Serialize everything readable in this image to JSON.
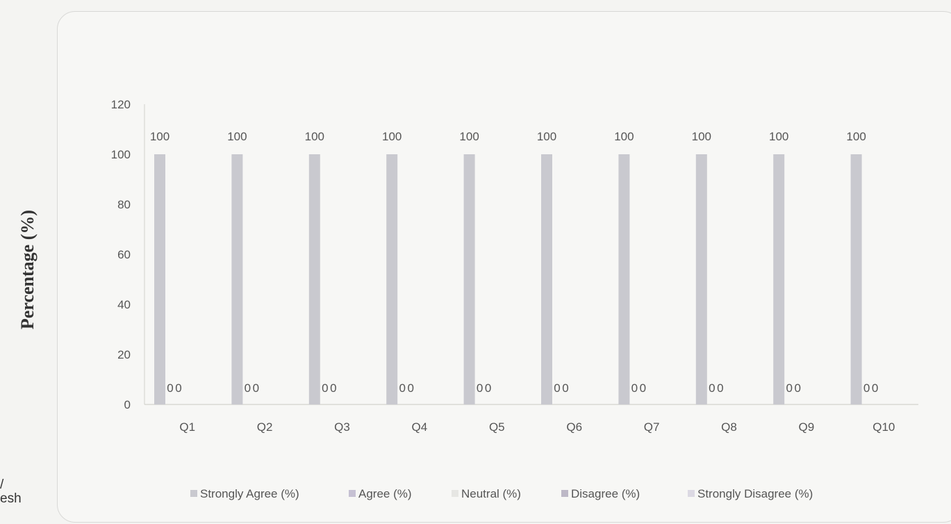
{
  "page": {
    "side_text_line1": "/",
    "side_text_line2": "esh"
  },
  "chart_data": {
    "type": "bar",
    "title": "",
    "xlabel": "",
    "ylabel": "Percentage (%)",
    "ylim": [
      0,
      120
    ],
    "yticks": [
      0,
      20,
      40,
      60,
      80,
      100,
      120
    ],
    "categories": [
      "Q1",
      "Q2",
      "Q3",
      "Q4",
      "Q5",
      "Q6",
      "Q7",
      "Q8",
      "Q9",
      "Q10"
    ],
    "series": [
      {
        "name": "Strongly Agree (%)",
        "values": [
          100,
          100,
          100,
          100,
          100,
          100,
          100,
          100,
          100,
          100
        ],
        "color": "#c9c9cf"
      },
      {
        "name": "Agree (%)",
        "values": [
          0,
          0,
          0,
          0,
          0,
          0,
          0,
          0,
          0,
          0
        ],
        "color": "#c6c1d3"
      },
      {
        "name": "Neutral (%)",
        "values": [
          null,
          null,
          null,
          null,
          null,
          null,
          null,
          null,
          null,
          null
        ],
        "color": "#e6e6e3"
      },
      {
        "name": "Disagree (%)",
        "values": [
          null,
          null,
          null,
          null,
          null,
          null,
          null,
          null,
          null,
          null
        ],
        "color": "#bdb8c6"
      },
      {
        "name": "Strongly Disagree (%)",
        "values": [
          null,
          null,
          null,
          null,
          null,
          null,
          null,
          null,
          null,
          null
        ],
        "color": "#dcd9e3"
      }
    ],
    "grid": false,
    "legend_position": "bottom"
  }
}
